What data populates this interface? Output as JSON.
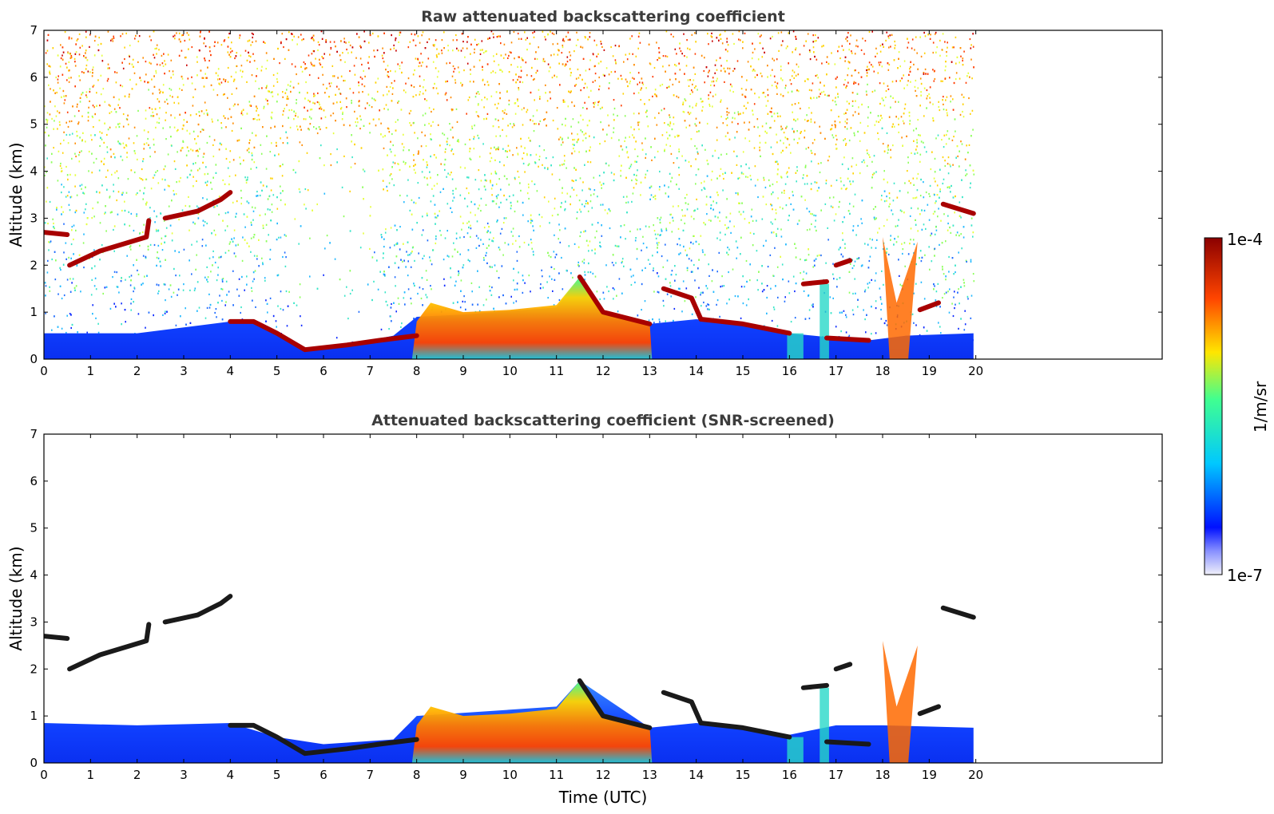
{
  "chart_data": [
    {
      "type": "heatmap",
      "title": "Raw attenuated backscattering coefficient",
      "xlabel": "",
      "ylabel": "Altitude (km)",
      "xlim": [
        0,
        24
      ],
      "ylim": [
        0,
        7
      ],
      "xticks": [
        "0",
        "1",
        "2",
        "3",
        "4",
        "5",
        "6",
        "7",
        "8",
        "9",
        "10",
        "11",
        "12",
        "13",
        "14",
        "15",
        "16",
        "17",
        "18",
        "19",
        "20"
      ],
      "yticks": [
        "0",
        "1",
        "2",
        "3",
        "4",
        "5",
        "6",
        "7"
      ],
      "data_end_time": 19.95,
      "boundary_layer_top_km": [
        {
          "t": 0,
          "z": 0.55
        },
        {
          "t": 2,
          "z": 0.55
        },
        {
          "t": 4,
          "z": 0.8
        },
        {
          "t": 4.5,
          "z": 0.8
        },
        {
          "t": 5,
          "z": 0.55
        },
        {
          "t": 5.6,
          "z": 0.2
        },
        {
          "t": 6.5,
          "z": 0.3
        },
        {
          "t": 7.5,
          "z": 0.5
        },
        {
          "t": 8,
          "z": 0.9
        },
        {
          "t": 9,
          "z": 0.95
        },
        {
          "t": 11,
          "z": 1.1
        },
        {
          "t": 11.5,
          "z": 1.75
        },
        {
          "t": 12,
          "z": 1.0
        },
        {
          "t": 13,
          "z": 0.75
        },
        {
          "t": 14,
          "z": 0.85
        },
        {
          "t": 15,
          "z": 0.75
        },
        {
          "t": 16,
          "z": 0.55
        },
        {
          "t": 17,
          "z": 0.45
        },
        {
          "t": 17.7,
          "z": 0.4
        },
        {
          "t": 18.5,
          "z": 0.5
        },
        {
          "t": 19.95,
          "z": 0.55
        }
      ],
      "cloud_layers_km": [
        [
          [
            0,
            2.7
          ],
          [
            0.5,
            2.65
          ]
        ],
        [
          [
            0.55,
            2.0
          ],
          [
            1.2,
            2.3
          ],
          [
            2.2,
            2.6
          ],
          [
            2.25,
            2.95
          ]
        ],
        [
          [
            2.6,
            3.0
          ],
          [
            3.3,
            3.15
          ],
          [
            3.8,
            3.4
          ],
          [
            4.0,
            3.55
          ]
        ],
        [
          [
            4.0,
            0.8
          ],
          [
            4.5,
            0.8
          ],
          [
            5.0,
            0.55
          ],
          [
            5.6,
            0.2
          ],
          [
            6.5,
            0.3
          ],
          [
            7.2,
            0.4
          ],
          [
            8.0,
            0.5
          ]
        ],
        [
          [
            11.5,
            1.75
          ],
          [
            12.0,
            1.0
          ],
          [
            13.0,
            0.75
          ]
        ],
        [
          [
            13.3,
            1.5
          ],
          [
            13.9,
            1.3
          ],
          [
            14.1,
            0.85
          ],
          [
            15.0,
            0.75
          ],
          [
            16.0,
            0.55
          ]
        ],
        [
          [
            16.3,
            1.6
          ],
          [
            16.8,
            1.65
          ]
        ],
        [
          [
            17.0,
            2.0
          ],
          [
            17.3,
            2.1
          ]
        ],
        [
          [
            16.8,
            0.45
          ],
          [
            17.7,
            0.4
          ]
        ],
        [
          [
            18.8,
            1.05
          ],
          [
            19.2,
            1.2
          ]
        ],
        [
          [
            19.3,
            3.3
          ],
          [
            19.95,
            3.1
          ]
        ]
      ],
      "colorbar": {
        "min_label": "1e-7",
        "max_label": "1e-4",
        "label": "1/m/sr",
        "scale": "log"
      }
    },
    {
      "type": "heatmap",
      "title": "Attenuated backscattering coefficient (SNR-screened)",
      "xlabel": "Time (UTC)",
      "ylabel": "Altitude (km)",
      "xlim": [
        0,
        24
      ],
      "ylim": [
        0,
        7
      ],
      "xticks": [
        "0",
        "1",
        "2",
        "3",
        "4",
        "5",
        "6",
        "7",
        "8",
        "9",
        "10",
        "11",
        "12",
        "13",
        "14",
        "15",
        "16",
        "17",
        "18",
        "19",
        "20"
      ],
      "yticks": [
        "0",
        "1",
        "2",
        "3",
        "4",
        "5",
        "6",
        "7"
      ],
      "data_end_time": 19.95,
      "screened_boundary_layer_top_km": [
        {
          "t": 0,
          "z": 0.85
        },
        {
          "t": 2,
          "z": 0.8
        },
        {
          "t": 4,
          "z": 0.85
        },
        {
          "t": 5,
          "z": 0.55
        },
        {
          "t": 6,
          "z": 0.4
        },
        {
          "t": 7.5,
          "z": 0.5
        },
        {
          "t": 8,
          "z": 1.0
        },
        {
          "t": 11,
          "z": 1.2
        },
        {
          "t": 11.5,
          "z": 1.75
        },
        {
          "t": 13,
          "z": 0.75
        },
        {
          "t": 14,
          "z": 0.85
        },
        {
          "t": 16,
          "z": 0.6
        },
        {
          "t": 17,
          "z": 0.8
        },
        {
          "t": 18,
          "z": 0.8
        },
        {
          "t": 19.95,
          "z": 0.75
        }
      ]
    }
  ],
  "colors": {
    "colormap": [
      "#f0f0fa",
      "#0010ff",
      "#00c8ff",
      "#40ff90",
      "#ffe600",
      "#ff4500",
      "#8b0000"
    ],
    "cloud_screened": "#1a1a1a"
  }
}
